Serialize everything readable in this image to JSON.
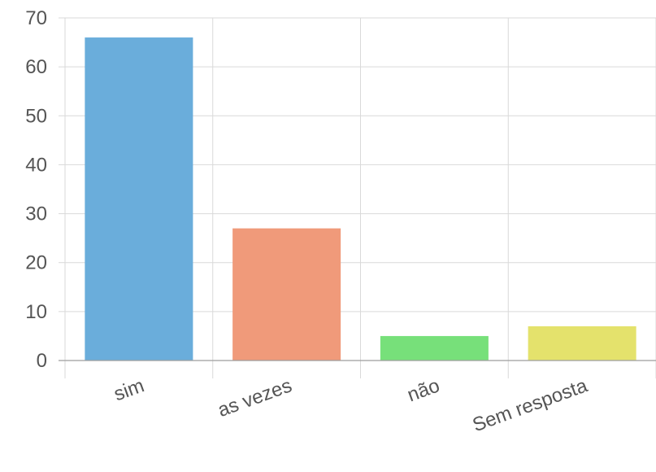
{
  "chart_data": {
    "type": "bar",
    "categories": [
      "sim",
      "as vezes",
      "não",
      "Sem resposta"
    ],
    "values": [
      66,
      27,
      5,
      7
    ],
    "colors": [
      "#6aaddb",
      "#f09a7a",
      "#77e07a",
      "#e4e26c"
    ],
    "ylim": [
      0,
      70
    ],
    "yticks": [
      0,
      10,
      20,
      30,
      40,
      50,
      60,
      70
    ],
    "grid": true,
    "title": "",
    "xlabel": "",
    "ylabel": ""
  }
}
